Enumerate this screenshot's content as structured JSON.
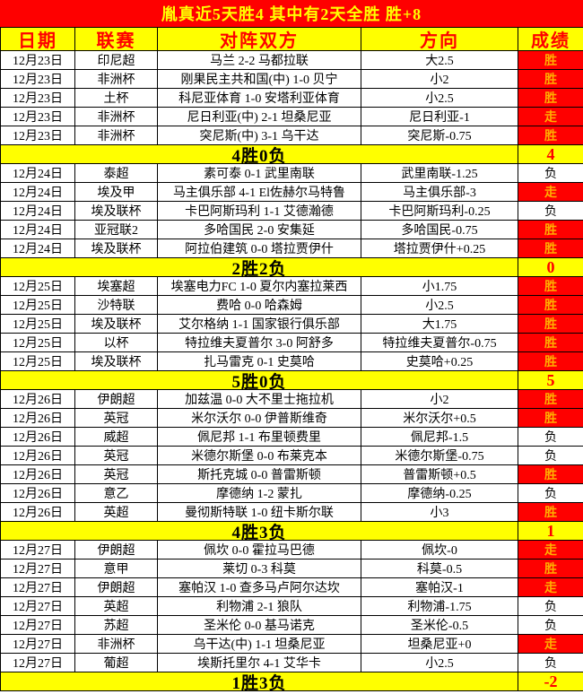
{
  "banner": {
    "title": "胤真近5天胜4  其中有2天全胜  胜+8"
  },
  "columns": {
    "date": "日期",
    "league": "联赛",
    "match": "对阵双方",
    "direction": "方向",
    "result": "成绩"
  },
  "colors": {
    "accent_red": "#fe0000",
    "accent_yellow": "#ffff00",
    "win_text": "#ffae00"
  },
  "sections": [
    {
      "date": "12月23日",
      "rows": [
        {
          "league": "印尼超",
          "match": "马兰 2-2 马都拉联",
          "direction": "大2.5",
          "result": "胜",
          "highlight": true
        },
        {
          "league": "非洲杯",
          "match": "刚果民主共和国(中) 1-0 贝宁",
          "direction": "小2",
          "result": "胜",
          "highlight": true
        },
        {
          "league": "土杯",
          "match": "科尼亚体育 1-0 安塔利亚体育",
          "direction": "小2.5",
          "result": "胜",
          "highlight": true
        },
        {
          "league": "非洲杯",
          "match": "尼日利亚(中) 2-1 坦桑尼亚",
          "direction": "尼日利亚-1",
          "result": "走",
          "highlight": true
        },
        {
          "league": "非洲杯",
          "match": "突尼斯(中) 3-1 乌干达",
          "direction": "突尼斯-0.75",
          "result": "胜",
          "highlight": true
        }
      ],
      "summary": {
        "label": "4胜0负",
        "score": "4"
      }
    },
    {
      "date": "12月24日",
      "rows": [
        {
          "league": "泰超",
          "match": "素可泰 0-1 武里南联",
          "direction": "武里南联-1.25",
          "result": "负",
          "highlight": false
        },
        {
          "league": "埃及甲",
          "match": "马主俱乐部 4-1 El佐赫尔马特鲁",
          "direction": "马主俱乐部-3",
          "result": "走",
          "highlight": true
        },
        {
          "league": "埃及联杯",
          "match": "卡巴阿斯玛利 1-1 艾德瀚德",
          "direction": "卡巴阿斯玛利-0.25",
          "result": "负",
          "highlight": false
        },
        {
          "league": "亚冠联2",
          "match": "多哈国民 2-0 安集延",
          "direction": "多哈国民-0.75",
          "result": "胜",
          "highlight": true
        },
        {
          "league": "埃及联杯",
          "match": "阿拉伯建筑 0-0 塔拉贾伊什",
          "direction": "塔拉贾伊什+0.25",
          "result": "胜",
          "highlight": true
        }
      ],
      "summary": {
        "label": "2胜2负",
        "score": "0"
      }
    },
    {
      "date": "12月25日",
      "rows": [
        {
          "league": "埃塞超",
          "match": "埃塞电力FC 1-0 夏尔内塞拉莱西",
          "direction": "小1.75",
          "result": "胜",
          "highlight": true
        },
        {
          "league": "沙特联",
          "match": "费哈 0-0 哈森姆",
          "direction": "小2.5",
          "result": "胜",
          "highlight": true
        },
        {
          "league": "埃及联杯",
          "match": "艾尔格纳 1-1 国家银行俱乐部",
          "direction": "大1.75",
          "result": "胜",
          "highlight": true
        },
        {
          "league": "以杯",
          "match": "特拉维夫夏普尔 3-0 阿舒多",
          "direction": "特拉维夫夏普尔-0.75",
          "result": "胜",
          "highlight": true
        },
        {
          "league": "埃及联杯",
          "match": "扎马雷克 0-1 史莫哈",
          "direction": "史莫哈+0.25",
          "result": "胜",
          "highlight": true
        }
      ],
      "summary": {
        "label": "5胜0负",
        "score": "5"
      }
    },
    {
      "date": "12月26日",
      "rows": [
        {
          "league": "伊朗超",
          "match": "加兹温 0-0 大不里士拖拉机",
          "direction": "小2",
          "result": "胜",
          "highlight": true
        },
        {
          "league": "英冠",
          "match": "米尔沃尔 0-0 伊普斯维奇",
          "direction": "米尔沃尔+0.5",
          "result": "胜",
          "highlight": true
        },
        {
          "league": "威超",
          "match": "佩尼邦 1-1 布里顿费里",
          "direction": "佩尼邦-1.5",
          "result": "负",
          "highlight": false
        },
        {
          "league": "英冠",
          "match": "米德尔斯堡 0-0 布莱克本",
          "direction": "米德尔斯堡-0.75",
          "result": "负",
          "highlight": false
        },
        {
          "league": "英冠",
          "match": "斯托克城 0-0 普雷斯顿",
          "direction": "普雷斯顿+0.5",
          "result": "胜",
          "highlight": true
        },
        {
          "league": "意乙",
          "match": "摩德纳 1-2 蒙扎",
          "direction": "摩德纳-0.25",
          "result": "负",
          "highlight": false
        },
        {
          "league": "英超",
          "match": "曼彻斯特联 1-0 纽卡斯尔联",
          "direction": "小3",
          "result": "胜",
          "highlight": true
        }
      ],
      "summary": {
        "label": "4胜3负",
        "score": "1"
      }
    },
    {
      "date": "12月27日",
      "rows": [
        {
          "league": "伊朗超",
          "match": "佩坎 0-0 霍拉马巴德",
          "direction": "佩坎-0",
          "result": "走",
          "highlight": true
        },
        {
          "league": "意甲",
          "match": "莱切 0-3 科莫",
          "direction": "科莫-0.5",
          "result": "胜",
          "highlight": true
        },
        {
          "league": "伊朗超",
          "match": "塞帕汉 1-0 查多马卢阿尔达坎",
          "direction": "塞帕汉-1",
          "result": "走",
          "highlight": true
        },
        {
          "league": "英超",
          "match": "利物浦 2-1 狼队",
          "direction": "利物浦-1.75",
          "result": "负",
          "highlight": false
        },
        {
          "league": "苏超",
          "match": "圣米伦 0-0 基马诺克",
          "direction": "圣米伦-0.5",
          "result": "负",
          "highlight": false
        },
        {
          "league": "非洲杯",
          "match": "乌干达(中) 1-1 坦桑尼亚",
          "direction": "坦桑尼亚+0",
          "result": "走",
          "highlight": true
        },
        {
          "league": "葡超",
          "match": "埃斯托里尔 4-1 艾华卡",
          "direction": "小2.5",
          "result": "负",
          "highlight": false
        }
      ],
      "summary": {
        "label": "1胜3负",
        "score": "-2"
      }
    }
  ]
}
